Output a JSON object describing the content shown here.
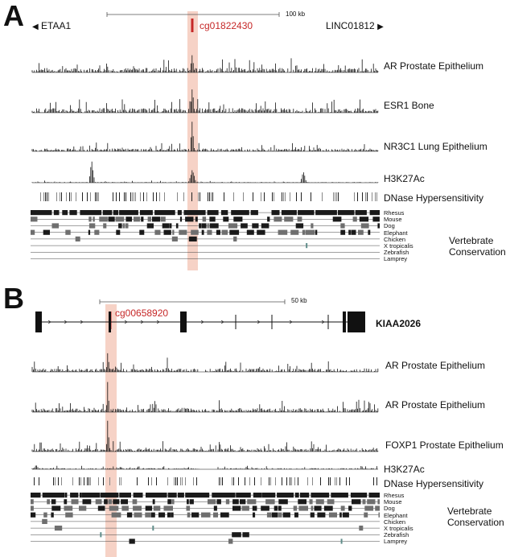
{
  "panelA": {
    "letter": "A",
    "scale_label": "100 kb",
    "gene_left": "ETAA1",
    "gene_right": "LINC01812",
    "probe": "cg01822430",
    "tracks": [
      "AR Prostate Epithelium",
      "ESR1 Bone",
      "NR3C1 Lung Epithelium",
      "H3K27Ac",
      "DNase Hypersensitivity"
    ],
    "conservation_label": "Vertebrate\nConservation"
  },
  "panelB": {
    "letter": "B",
    "scale_label": "50 kb",
    "gene": "KIAA2026",
    "probe": "cg00658920",
    "tracks": [
      "AR Prostate Epithelium",
      "AR Prostate Epithelium",
      "FOXP1 Prostate Epithelium",
      "H3K27Ac",
      "DNase Hypersensitivity"
    ],
    "conservation_label": "Vertebrate\nConservation"
  },
  "species": [
    "Rhesus",
    "Mouse",
    "Dog",
    "Elephant",
    "Chicken",
    "X tropicalis",
    "Zebrafish",
    "Lamprey"
  ],
  "colors": {
    "highlight": "#f6d2c6",
    "probe": "#c62828",
    "track": "#111111",
    "conservation_dark": "#1a1a1a",
    "conservation_mid": "#6f6f6f",
    "teal_mark": "#5f8d8a"
  }
}
